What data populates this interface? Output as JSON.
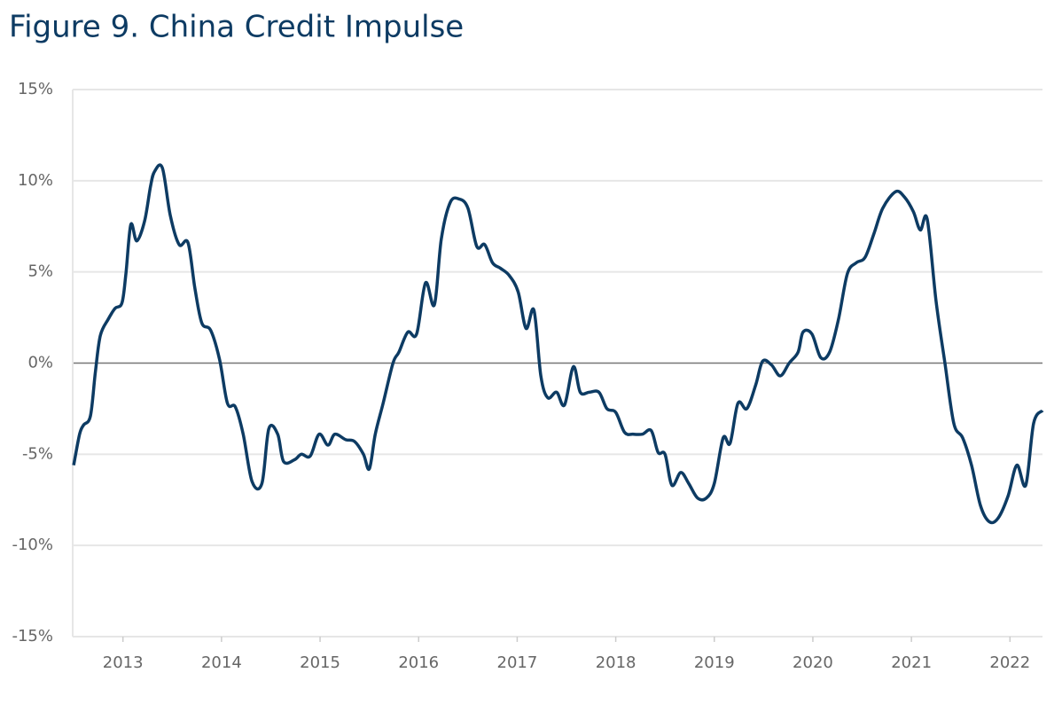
{
  "chart_data": {
    "type": "line",
    "title": "Figure 9. China Credit Impulse",
    "x": [
      2012.5,
      2012.56,
      2012.6,
      2012.67,
      2012.72,
      2012.77,
      2012.85,
      2012.92,
      2012.99,
      2013.03,
      2013.08,
      2013.14,
      2013.22,
      2013.28,
      2013.32,
      2013.4,
      2013.48,
      2013.57,
      2013.66,
      2013.73,
      2013.8,
      2013.89,
      2013.98,
      2014.06,
      2014.14,
      2014.22,
      2014.31,
      2014.41,
      2014.48,
      2014.57,
      2014.63,
      2014.74,
      2014.81,
      2014.9,
      2014.99,
      2015.08,
      2015.15,
      2015.26,
      2015.35,
      2015.44,
      2015.5,
      2015.56,
      2015.64,
      2015.74,
      2015.8,
      2015.89,
      2015.98,
      2016.07,
      2016.16,
      2016.23,
      2016.32,
      2016.41,
      2016.5,
      2016.59,
      2016.67,
      2016.75,
      2016.83,
      2016.92,
      2017.01,
      2017.09,
      2017.17,
      2017.24,
      2017.31,
      2017.4,
      2017.48,
      2017.57,
      2017.64,
      2017.73,
      2017.83,
      2017.91,
      2018.0,
      2018.09,
      2018.18,
      2018.27,
      2018.36,
      2018.43,
      2018.5,
      2018.57,
      2018.66,
      2018.74,
      2018.83,
      2018.92,
      2019.0,
      2019.09,
      2019.16,
      2019.24,
      2019.33,
      2019.42,
      2019.49,
      2019.58,
      2019.67,
      2019.76,
      2019.85,
      2019.9,
      2019.99,
      2020.08,
      2020.17,
      2020.26,
      2020.35,
      2020.44,
      2020.53,
      2020.62,
      2020.71,
      2020.84,
      2020.93,
      2021.02,
      2021.09,
      2021.16,
      2021.25,
      2021.34,
      2021.43,
      2021.52,
      2021.61,
      2021.7,
      2021.79,
      2021.88,
      2021.98,
      2022.07,
      2022.16,
      2022.24,
      2022.33
    ],
    "values": [
      -5.6,
      -3.9,
      -3.4,
      -2.9,
      -0.5,
      1.5,
      2.4,
      3.0,
      3.3,
      4.9,
      7.6,
      6.7,
      7.8,
      9.7,
      10.5,
      10.7,
      8.1,
      6.5,
      6.6,
      4.1,
      2.2,
      1.8,
      0.2,
      -2.2,
      -2.4,
      -3.9,
      -6.5,
      -6.6,
      -3.6,
      -3.9,
      -5.4,
      -5.3,
      -5.0,
      -5.1,
      -3.9,
      -4.5,
      -3.9,
      -4.2,
      -4.3,
      -5.0,
      -5.8,
      -3.9,
      -2.2,
      0,
      0.6,
      1.7,
      1.6,
      4.4,
      3.2,
      6.8,
      8.8,
      9.0,
      8.5,
      6.4,
      6.5,
      5.5,
      5.2,
      4.8,
      3.9,
      1.9,
      2.9,
      -0.7,
      -1.9,
      -1.6,
      -2.3,
      -0.2,
      -1.6,
      -1.6,
      -1.6,
      -2.5,
      -2.7,
      -3.8,
      -3.9,
      -3.9,
      -3.7,
      -4.9,
      -5.0,
      -6.7,
      -6.0,
      -6.6,
      -7.4,
      -7.4,
      -6.6,
      -4.1,
      -4.4,
      -2.2,
      -2.5,
      -1.2,
      0.1,
      -0.1,
      -0.7,
      0,
      0.6,
      1.7,
      1.6,
      0.3,
      0.6,
      2.4,
      4.9,
      5.5,
      5.8,
      7.1,
      8.5,
      9.4,
      9.1,
      8.3,
      7.3,
      7.9,
      3.4,
      0,
      -3.3,
      -4.1,
      -5.6,
      -7.8,
      -8.7,
      -8.5,
      -7.3,
      -5.6,
      -6.7,
      -3.3,
      -2.6
    ],
    "color": "#0d3b63",
    "xlim": [
      2012.49,
      2022.33
    ],
    "xticks": [
      2013,
      2014,
      2015,
      2016,
      2017,
      2018,
      2019,
      2020,
      2021,
      2022
    ],
    "ylim": [
      -15,
      15
    ],
    "yticks": [
      {
        "value": -15,
        "label": "-15%"
      },
      {
        "value": -10,
        "label": "-10%"
      },
      {
        "value": -5,
        "label": "-5%"
      },
      {
        "value": 0,
        "label": "0%"
      },
      {
        "value": 5,
        "label": "5%"
      },
      {
        "value": 10,
        "label": "10%"
      },
      {
        "value": 15,
        "label": "15%"
      }
    ],
    "grid": true
  }
}
